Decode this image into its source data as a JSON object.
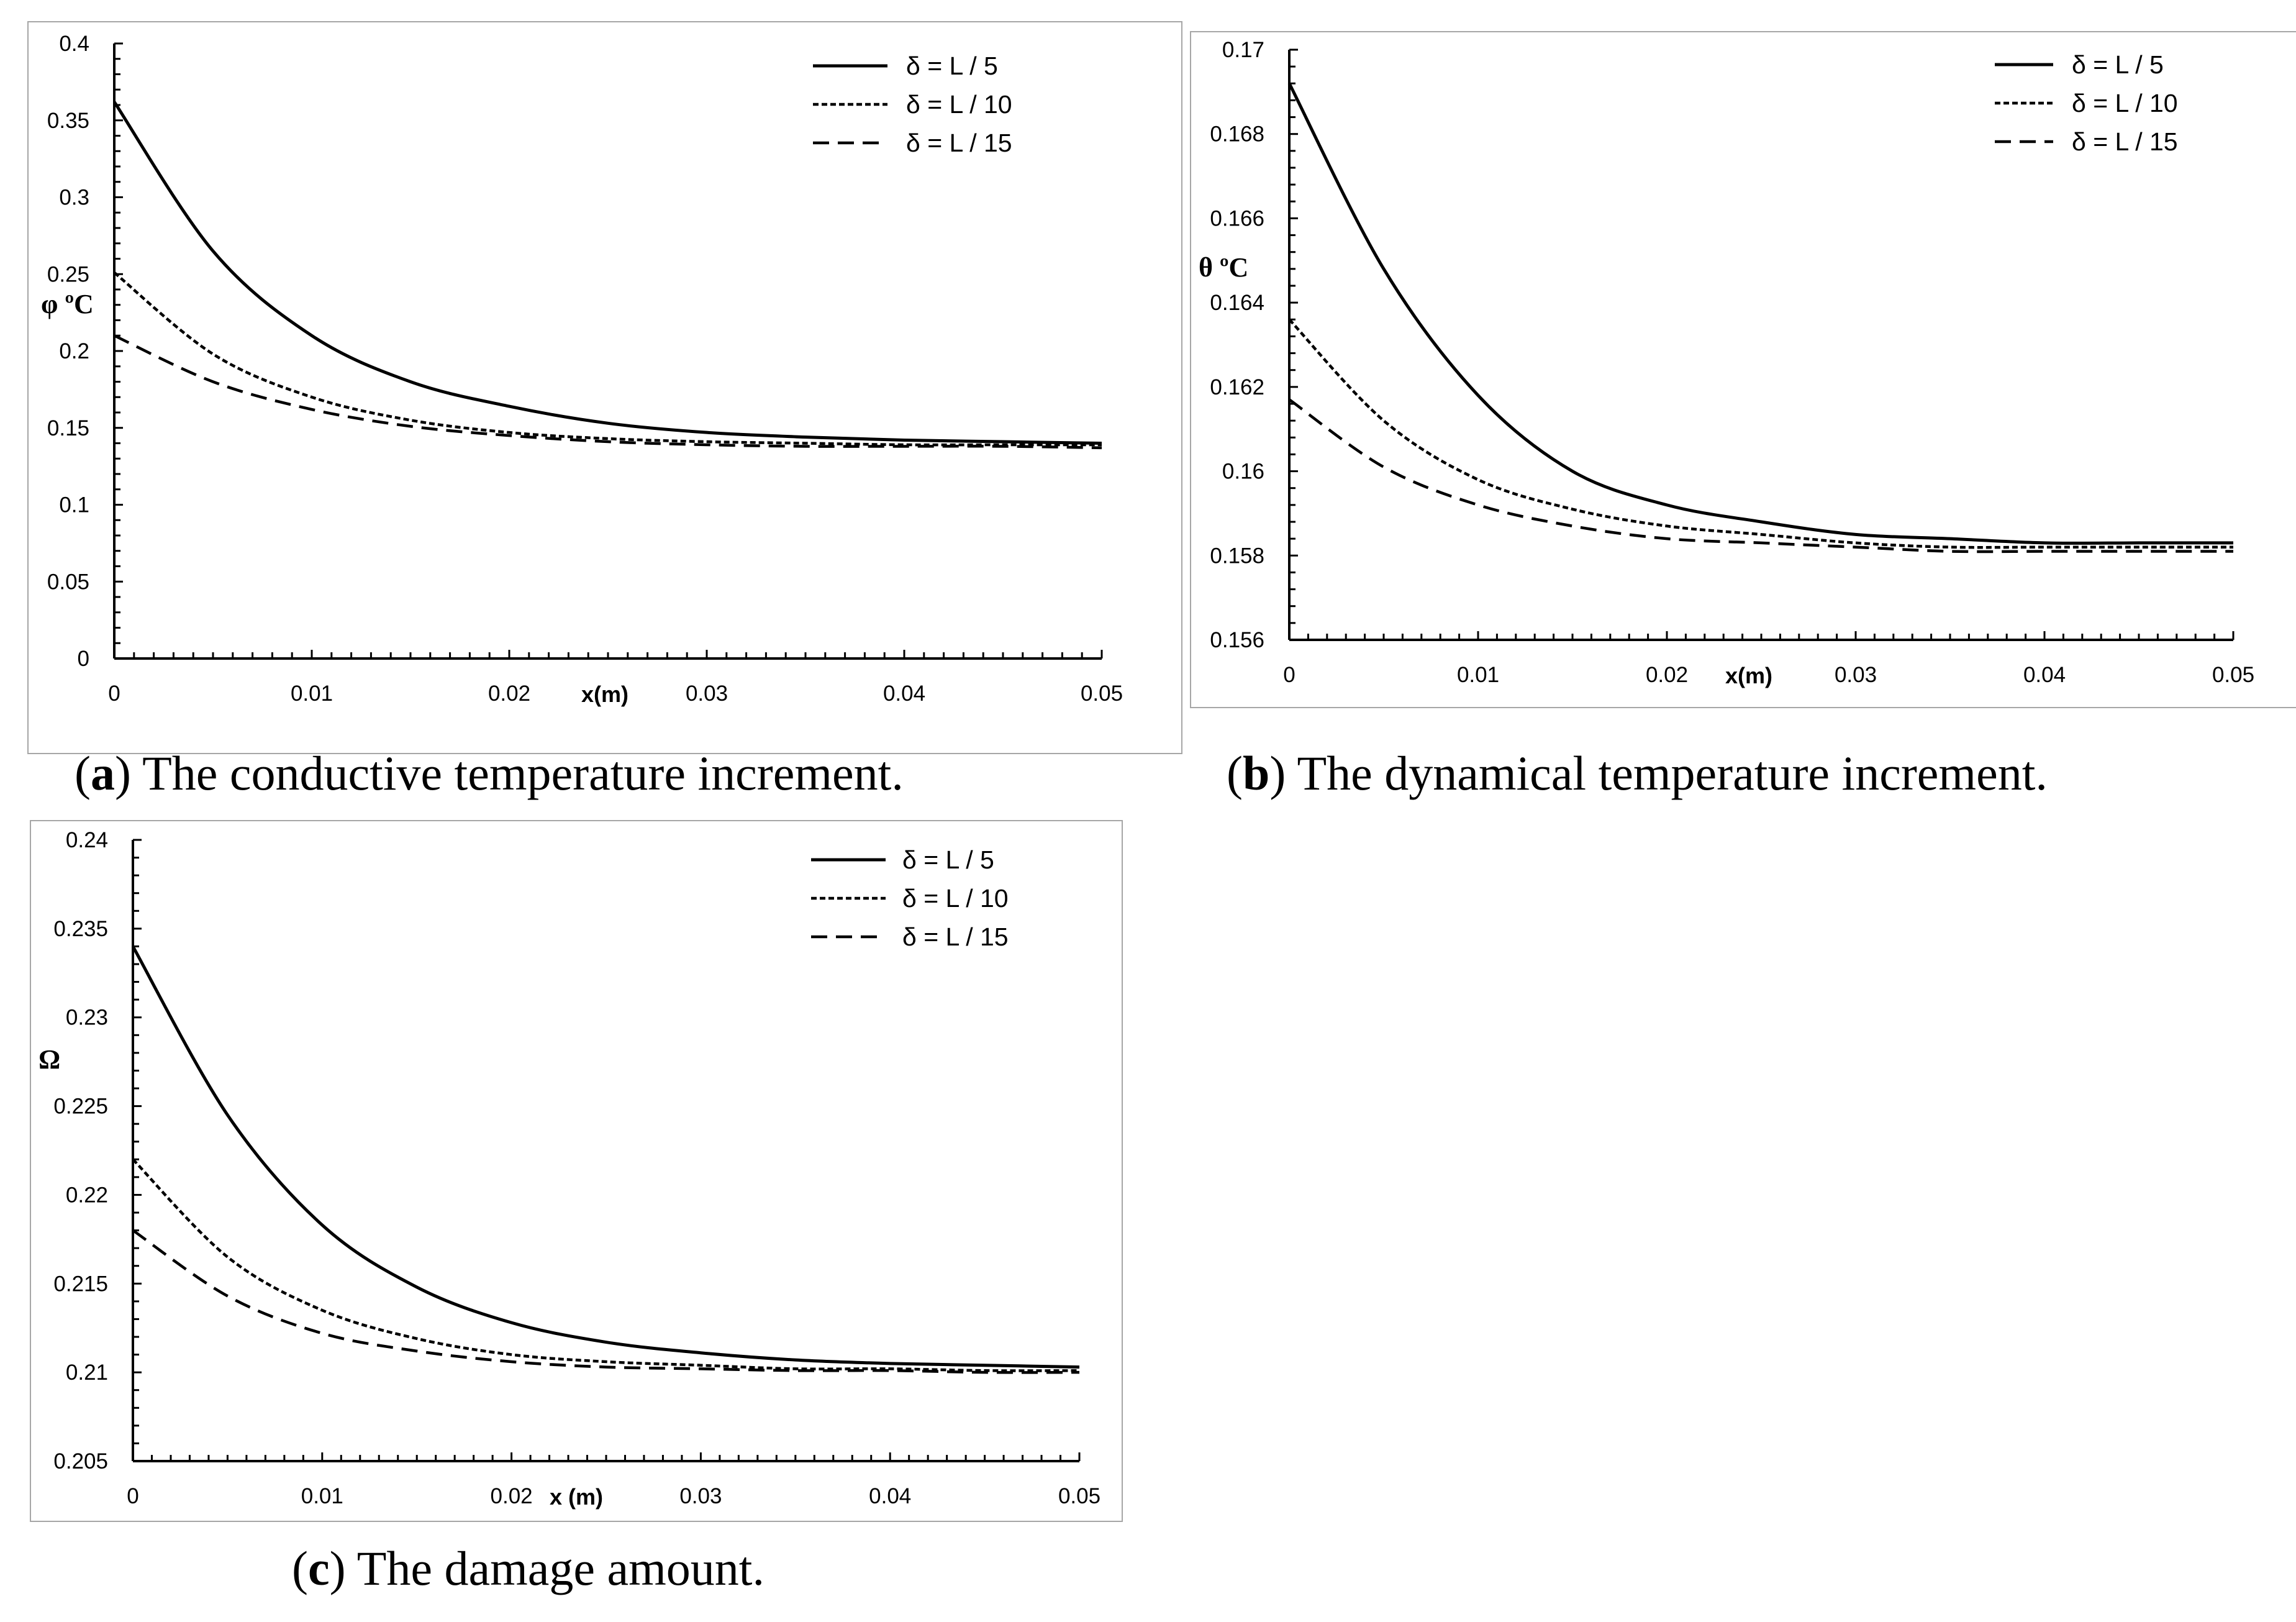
{
  "chart_data": [
    {
      "type": "line",
      "caption_letter": "a",
      "caption_text": "The conductive temperature increment.",
      "xlabel": "x(m)",
      "ylabel": "φ ºC",
      "xlim": [
        0,
        0.05
      ],
      "ylim": [
        0,
        0.4
      ],
      "xticks": [
        "0",
        "0.01",
        "0.02",
        "0.03",
        "0.04",
        "0.05"
      ],
      "yticks": [
        "0",
        "0.05",
        "0.1",
        "0.15",
        "0.2",
        "0.25",
        "0.3",
        "0.35",
        "0.4"
      ],
      "series": [
        {
          "name": "δ = L / 5",
          "style": "solid",
          "x": [
            0,
            0.005,
            0.01,
            0.015,
            0.02,
            0.025,
            0.03,
            0.035,
            0.04,
            0.045,
            0.05
          ],
          "values": [
            0.362,
            0.265,
            0.21,
            0.18,
            0.164,
            0.153,
            0.147,
            0.144,
            0.142,
            0.141,
            0.14
          ]
        },
        {
          "name": "δ = L / 10",
          "style": "dotted",
          "x": [
            0,
            0.005,
            0.01,
            0.015,
            0.02,
            0.025,
            0.03,
            0.035,
            0.04,
            0.045,
            0.05
          ],
          "values": [
            0.251,
            0.198,
            0.17,
            0.155,
            0.147,
            0.143,
            0.141,
            0.14,
            0.139,
            0.139,
            0.139
          ]
        },
        {
          "name": "δ = L / 15",
          "style": "dashed",
          "x": [
            0,
            0.005,
            0.01,
            0.015,
            0.02,
            0.025,
            0.03,
            0.035,
            0.04,
            0.045,
            0.05
          ],
          "values": [
            0.21,
            0.18,
            0.162,
            0.151,
            0.145,
            0.141,
            0.139,
            0.138,
            0.138,
            0.138,
            0.137
          ]
        }
      ]
    },
    {
      "type": "line",
      "caption_letter": "b",
      "caption_text": "The dynamical temperature increment.",
      "xlabel": "x(m)",
      "ylabel": "θ ºC",
      "xlim": [
        0,
        0.05
      ],
      "ylim": [
        0.156,
        0.17
      ],
      "xticks": [
        "0",
        "0.01",
        "0.02",
        "0.03",
        "0.04",
        "0.05"
      ],
      "yticks": [
        "0.156",
        "0.158",
        "0.16",
        "0.162",
        "0.164",
        "0.166",
        "0.168",
        "0.17"
      ],
      "series": [
        {
          "name": "δ = L / 5",
          "style": "solid",
          "x": [
            0,
            0.005,
            0.01,
            0.015,
            0.02,
            0.025,
            0.03,
            0.035,
            0.04,
            0.045,
            0.05
          ],
          "values": [
            0.1692,
            0.1648,
            0.1618,
            0.16,
            0.1592,
            0.1588,
            0.1585,
            0.1584,
            0.1583,
            0.1583,
            0.1583
          ]
        },
        {
          "name": "δ = L / 10",
          "style": "dotted",
          "x": [
            0,
            0.005,
            0.01,
            0.015,
            0.02,
            0.025,
            0.03,
            0.035,
            0.04,
            0.045,
            0.05
          ],
          "values": [
            0.1636,
            0.1612,
            0.1598,
            0.1591,
            0.1587,
            0.1585,
            0.1583,
            0.1582,
            0.1582,
            0.1582,
            0.1582
          ]
        },
        {
          "name": "δ = L / 15",
          "style": "dashed",
          "x": [
            0,
            0.005,
            0.01,
            0.015,
            0.02,
            0.025,
            0.03,
            0.035,
            0.04,
            0.045,
            0.05
          ],
          "values": [
            0.1617,
            0.1601,
            0.1592,
            0.1587,
            0.1584,
            0.1583,
            0.1582,
            0.1581,
            0.1581,
            0.1581,
            0.1581
          ]
        }
      ]
    },
    {
      "type": "line",
      "caption_letter": "c",
      "caption_text": "The damage amount.",
      "xlabel": "x (m)",
      "ylabel": "Ω",
      "xlim": [
        0,
        0.05
      ],
      "ylim": [
        0.205,
        0.24
      ],
      "xticks": [
        "0",
        "0.01",
        "0.02",
        "0.03",
        "0.04",
        "0.05"
      ],
      "yticks": [
        "0.205",
        "0.21",
        "0.215",
        "0.22",
        "0.225",
        "0.23",
        "0.235",
        "0.24"
      ],
      "series": [
        {
          "name": "δ = L / 5",
          "style": "solid",
          "x": [
            0,
            0.005,
            0.01,
            0.015,
            0.02,
            0.025,
            0.03,
            0.035,
            0.04,
            0.045,
            0.05
          ],
          "values": [
            0.234,
            0.2245,
            0.2183,
            0.2148,
            0.2128,
            0.2117,
            0.2111,
            0.2107,
            0.2105,
            0.2104,
            0.2103
          ]
        },
        {
          "name": "δ = L / 10",
          "style": "dotted",
          "x": [
            0,
            0.005,
            0.01,
            0.015,
            0.02,
            0.025,
            0.03,
            0.035,
            0.04,
            0.045,
            0.05
          ],
          "values": [
            0.222,
            0.2165,
            0.2135,
            0.2119,
            0.211,
            0.2106,
            0.2104,
            0.2102,
            0.2102,
            0.2101,
            0.2101
          ]
        },
        {
          "name": "δ = L / 15",
          "style": "dashed",
          "x": [
            0,
            0.005,
            0.01,
            0.015,
            0.02,
            0.025,
            0.03,
            0.035,
            0.04,
            0.045,
            0.05
          ],
          "values": [
            0.218,
            0.2143,
            0.2122,
            0.2112,
            0.2106,
            0.2103,
            0.2102,
            0.2101,
            0.2101,
            0.21,
            0.21
          ]
        }
      ]
    }
  ]
}
